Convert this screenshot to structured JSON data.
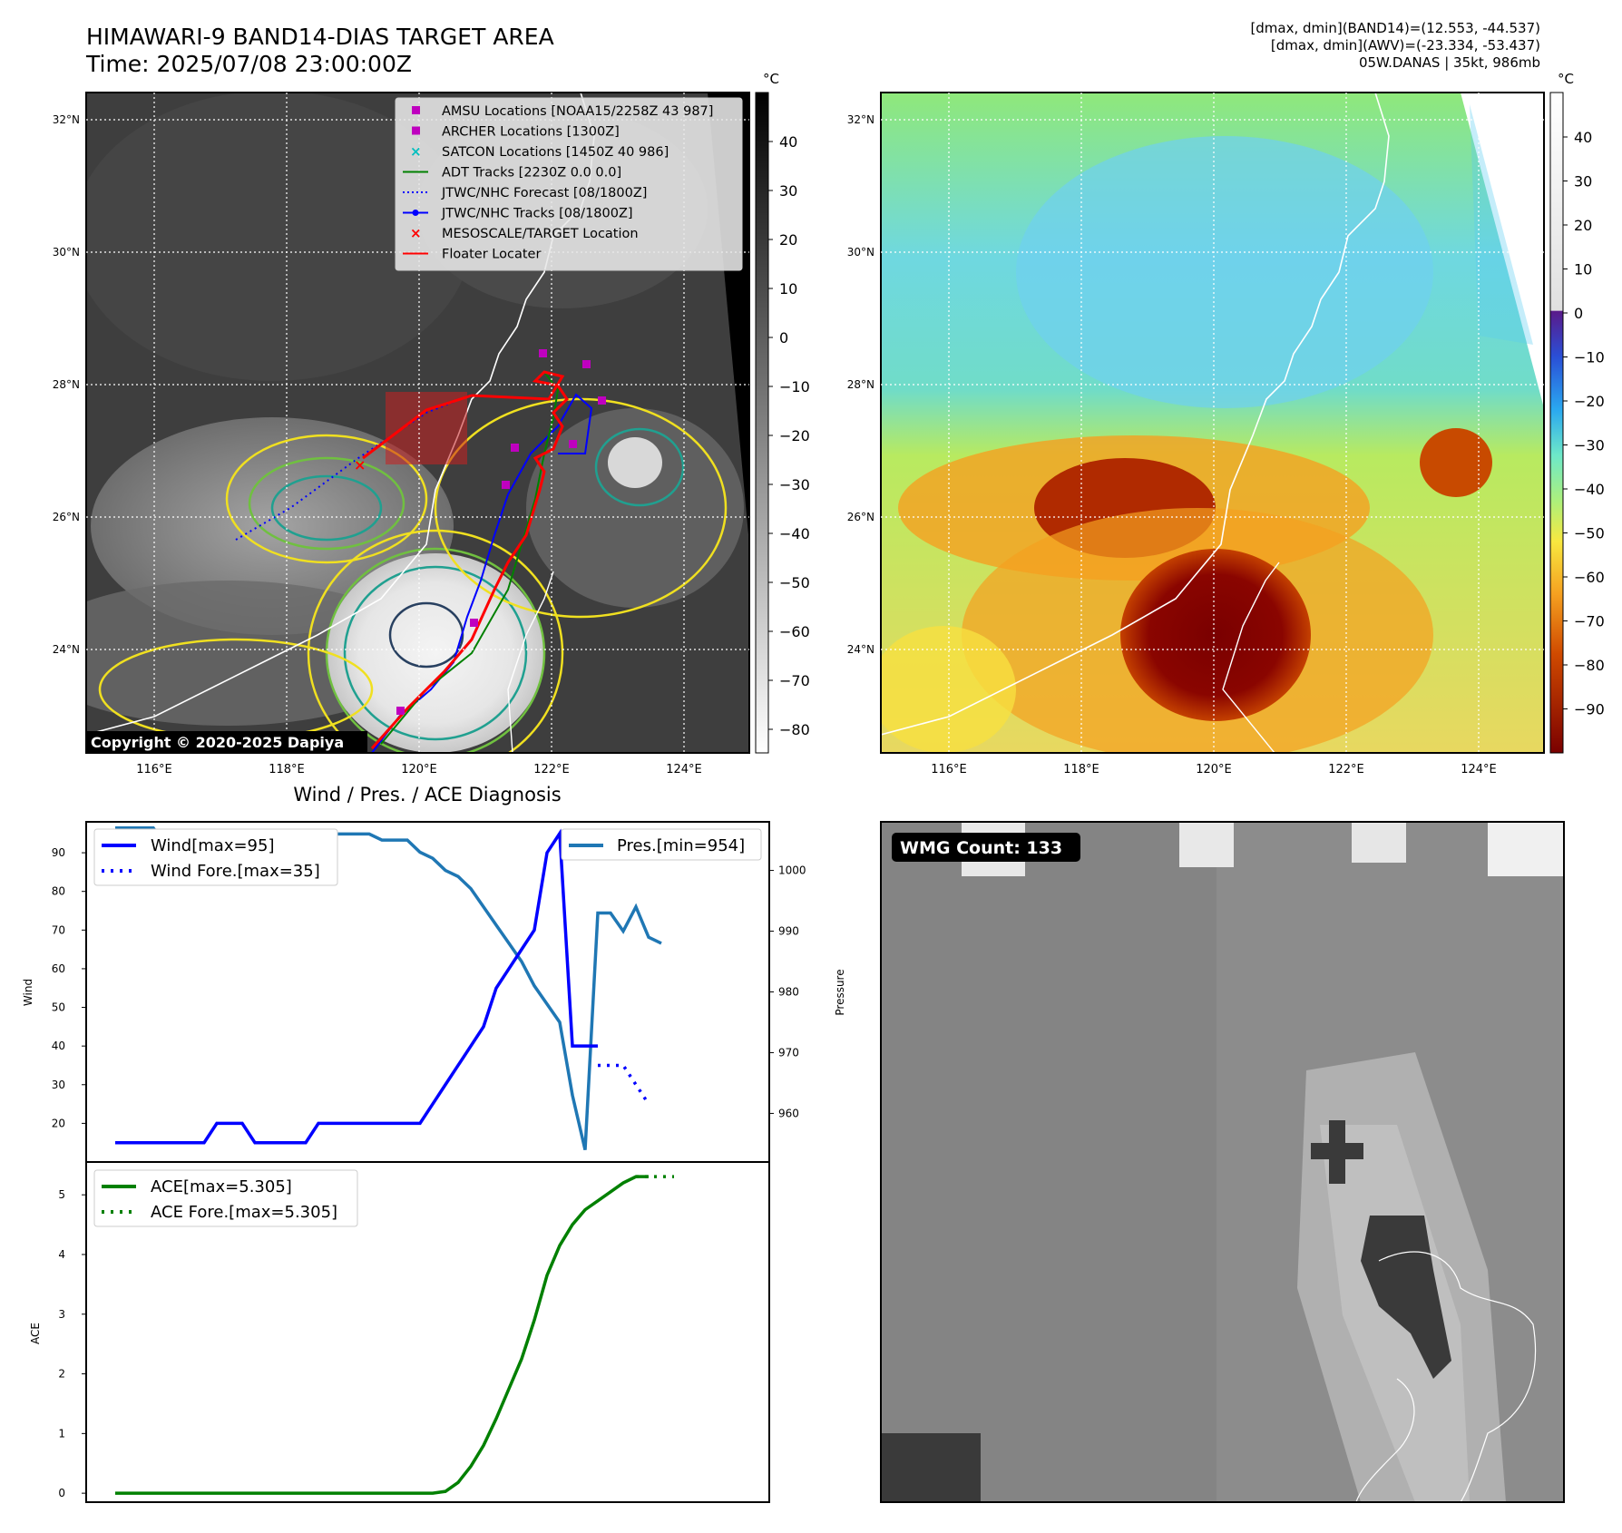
{
  "header": {
    "title_line1": "HIMAWARI-9 BAND14-DIAS TARGET AREA",
    "title_line2": "Time: 2025/07/08 23:00:00Z",
    "info_line1": "[dmax, dmin](BAND14)=(12.553, -44.537)",
    "info_line2": "[dmax, dmin](AWV)=(-23.334, -53.437)",
    "info_line3": "05W.DANAS | 35kt, 986mb"
  },
  "copyright": "Copyright © 2020-2025 Dapiya",
  "map": {
    "lat_labels": [
      "32°N",
      "30°N",
      "28°N",
      "26°N",
      "24°N"
    ],
    "lon_labels": [
      "116°E",
      "118°E",
      "120°E",
      "122°E",
      "124°E"
    ],
    "legend": [
      {
        "label": "AMSU Locations [NOAA15/2258Z 43 987]",
        "color": "#bf00bf",
        "marker": "square"
      },
      {
        "label": "ARCHER Locations [1300Z]",
        "color": "#bf00bf",
        "marker": "square"
      },
      {
        "label": "SATCON Locations [1450Z 40 986]",
        "color": "#00bfbf",
        "marker": "x"
      },
      {
        "label": "ADT Tracks [2230Z 0.0 0.0]",
        "color": "#008000",
        "marker": "line"
      },
      {
        "label": "JTWC/NHC Forecast [08/1800Z]",
        "color": "#0000ff",
        "marker": "dotted"
      },
      {
        "label": "JTWC/NHC Tracks [08/1800Z]",
        "color": "#0000ff",
        "marker": "line-dot"
      },
      {
        "label": "MESOSCALE/TARGET Location",
        "color": "#ff0000",
        "marker": "x"
      },
      {
        "label": "Floater Locater",
        "color": "#ff0000",
        "marker": "line"
      }
    ],
    "gray_colorbar": {
      "unit": "°C",
      "ticks": [
        "40",
        "30",
        "20",
        "10",
        "0",
        "−10",
        "−20",
        "−30",
        "−40",
        "−50",
        "−60",
        "−70",
        "−80"
      ]
    },
    "color_colorbar": {
      "unit": "°C",
      "ticks": [
        "40",
        "30",
        "20",
        "10",
        "0",
        "−10",
        "−20",
        "−30",
        "−40",
        "−50",
        "−60",
        "−70",
        "−80",
        "−90"
      ]
    }
  },
  "diagnosis_title": "Wind / Pres. / ACE Diagnosis",
  "wmg": {
    "label": "WMG Count: 133"
  },
  "colors": {
    "wind": "#0000ff",
    "pressure": "#1f77b4",
    "ace": "#008000"
  },
  "chart_data": [
    {
      "type": "line",
      "ylabel": "Wind",
      "y2label": "Pressure",
      "ylim": [
        10,
        98
      ],
      "y2lim": [
        952,
        1008
      ],
      "yticks": [
        20,
        30,
        40,
        50,
        60,
        70,
        80,
        90
      ],
      "y2ticks": [
        960,
        970,
        980,
        990,
        1000
      ],
      "series": [
        {
          "name": "Wind[max=95]",
          "x": [
            0,
            1,
            2,
            3,
            4,
            5,
            6,
            7,
            8,
            9,
            10,
            11,
            12,
            13,
            14,
            15,
            16,
            17,
            18,
            19,
            20,
            21,
            22,
            23,
            24,
            25,
            26,
            27,
            28,
            29,
            30,
            31,
            32,
            33,
            34,
            35,
            36,
            37,
            38
          ],
          "values": [
            15,
            15,
            15,
            15,
            15,
            15,
            15,
            15,
            20,
            20,
            20,
            15,
            15,
            15,
            15,
            15,
            20,
            20,
            20,
            20,
            20,
            20,
            20,
            20,
            20,
            25,
            30,
            35,
            40,
            45,
            55,
            60,
            65,
            70,
            90,
            95,
            40,
            40,
            40
          ]
        },
        {
          "name": "Wind Fore.[max=35]",
          "x": [
            38,
            39,
            40,
            41,
            42
          ],
          "values": [
            35,
            35,
            35,
            30,
            25
          ]
        },
        {
          "name": "Pres.[min=954]",
          "x": [
            0,
            1,
            2,
            3,
            4,
            5,
            6,
            7,
            8,
            9,
            10,
            11,
            12,
            13,
            14,
            15,
            16,
            17,
            18,
            19,
            20,
            21,
            22,
            23,
            24,
            25,
            26,
            27,
            28,
            29,
            30,
            31,
            32,
            33,
            34,
            35,
            36,
            37,
            38,
            39,
            40,
            41,
            42,
            43
          ],
          "values": [
            1007,
            1007,
            1007,
            1007,
            1004,
            1004,
            1004,
            1004,
            1004,
            1004,
            1004,
            1004,
            1005,
            1005,
            1004,
            1004,
            1006,
            1006,
            1006,
            1006,
            1006,
            1005,
            1005,
            1005,
            1003,
            1002,
            1000,
            999,
            997,
            994,
            991,
            988,
            985,
            981,
            978,
            975,
            963,
            954,
            993,
            993,
            990,
            994,
            989,
            988
          ]
        }
      ]
    },
    {
      "type": "line",
      "ylabel": "ACE",
      "ylim": [
        -0.15,
        5.55
      ],
      "yticks": [
        0,
        1,
        2,
        3,
        4,
        5
      ],
      "series": [
        {
          "name": "ACE[max=5.305]",
          "x": [
            0,
            2,
            4,
            6,
            8,
            10,
            12,
            14,
            16,
            18,
            20,
            22,
            24,
            25,
            26,
            27,
            28,
            29,
            30,
            31,
            32,
            33,
            34,
            35,
            36,
            37,
            38,
            39,
            40,
            41,
            42
          ],
          "values": [
            0,
            0,
            0,
            0,
            0,
            0,
            0,
            0,
            0,
            0,
            0,
            0,
            0,
            0,
            0.03,
            0.18,
            0.45,
            0.8,
            1.25,
            1.75,
            2.25,
            2.9,
            3.65,
            4.15,
            4.5,
            4.75,
            4.9,
            5.05,
            5.2,
            5.305,
            5.305
          ]
        },
        {
          "name": "ACE Fore.[max=5.305]",
          "x": [
            41,
            42,
            43,
            44
          ],
          "values": [
            5.305,
            5.305,
            5.305,
            5.305
          ]
        }
      ]
    }
  ]
}
